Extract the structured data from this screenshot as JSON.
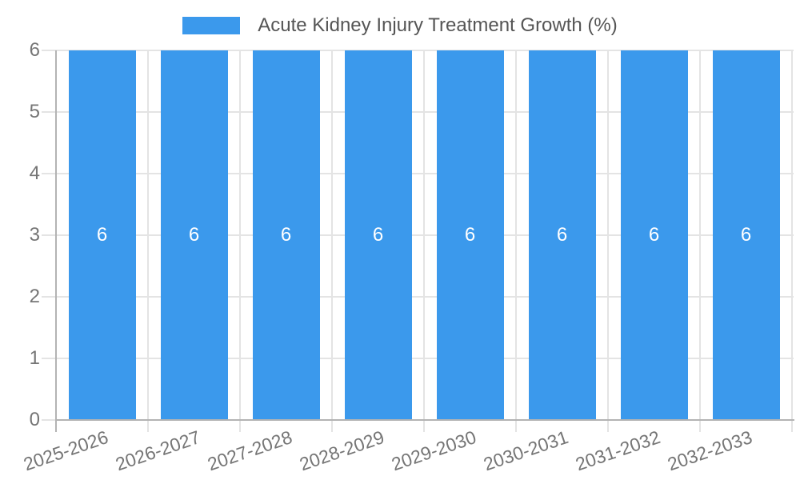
{
  "colors": {
    "bar": "#3B99EC",
    "bar_value_text": "#FFFFFF",
    "axis_label_text": "#757575",
    "legend_text": "#555555",
    "gridline": "#E4E4E4",
    "axis_line": "#B3B3B3"
  },
  "legend": {
    "label": "Acute Kidney Injury Treatment Growth (%)"
  },
  "chart_data": {
    "type": "bar",
    "title": "Acute Kidney Injury Treatment Growth (%)",
    "categories": [
      "2025-2026",
      "2026-2027",
      "2027-2028",
      "2028-2029",
      "2029-2030",
      "2030-2031",
      "2031-2032",
      "2032-2033"
    ],
    "series": [
      {
        "name": "Acute Kidney Injury Treatment Growth (%)",
        "values": [
          6,
          6,
          6,
          6,
          6,
          6,
          6,
          6
        ]
      }
    ],
    "bar_value_labels": [
      "6",
      "6",
      "6",
      "6",
      "6",
      "6",
      "6",
      "6"
    ],
    "xlabel": "",
    "ylabel": "",
    "ylim": [
      0,
      6
    ],
    "yticks": [
      0,
      1,
      2,
      3,
      4,
      5,
      6
    ],
    "legend_position": "top-center",
    "grid": true
  }
}
